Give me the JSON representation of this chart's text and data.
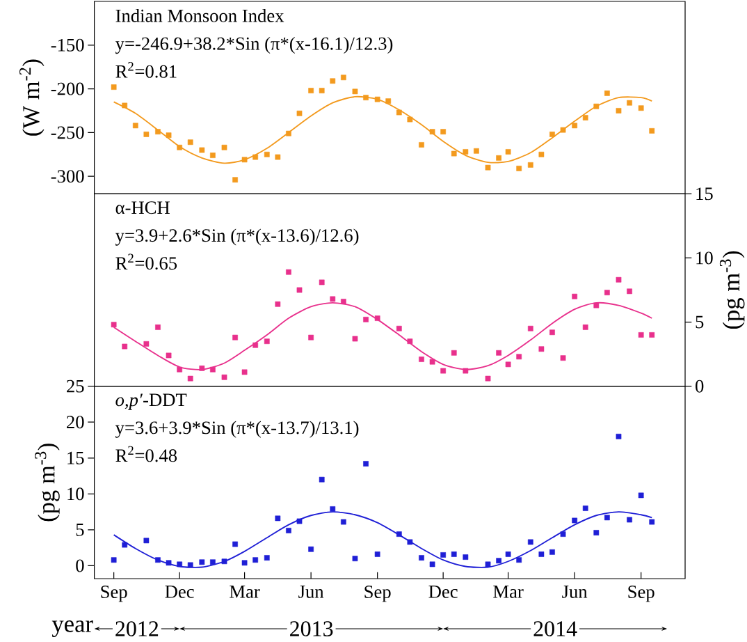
{
  "chart_data": [
    {
      "type": "scatter",
      "title": "Indian Monsoon Index",
      "annotations": [
        "y=-246.9+38.2*Sin (π*(x-16.1)/12.3)",
        "R$^{2}$=0.81"
      ],
      "ylabel": "(W  m$^{-2}$)",
      "marker": "square",
      "tick_labels": "y",
      "x": [
        "2012-09-01",
        "2012-09-16",
        "2012-10-01",
        "2012-10-16",
        "2012-11-01",
        "2012-11-16",
        "2012-12-01",
        "2012-12-16",
        "2013-01-01",
        "2013-01-16",
        "2013-02-01",
        "2013-02-16",
        "2013-03-01",
        "2013-03-16",
        "2013-04-01",
        "2013-04-16",
        "2013-05-01",
        "2013-05-16",
        "2013-06-01",
        "2013-06-16",
        "2013-07-01",
        "2013-07-16",
        "2013-08-01",
        "2013-08-16",
        "2013-09-01",
        "2013-09-16",
        "2013-10-01",
        "2013-10-16",
        "2013-11-01",
        "2013-11-16",
        "2013-12-01",
        "2013-12-16",
        "2014-01-01",
        "2014-01-16",
        "2014-02-01",
        "2014-02-16",
        "2014-03-01",
        "2014-03-16",
        "2014-04-01",
        "2014-04-16",
        "2014-05-01",
        "2014-05-16",
        "2014-06-01",
        "2014-06-16",
        "2014-07-01",
        "2014-07-16",
        "2014-08-01",
        "2014-08-16",
        "2014-09-01",
        "2014-09-16"
      ],
      "xlim": [
        "2012-08-05",
        "2014-11-01"
      ],
      "ylim": [
        -320,
        -100
      ],
      "yticks": [
        -300,
        -250,
        -200,
        -150
      ],
      "series": [
        {
          "color": "#f39a1e",
          "values": [
            -198,
            -219,
            -242,
            -252,
            -249,
            -253,
            -267,
            -261,
            -270,
            -276,
            -267,
            -304,
            -281,
            -278,
            -275,
            -278,
            -251,
            -228,
            -202,
            -202,
            -191,
            -187,
            -203,
            -210,
            -212,
            -214,
            -227,
            -235,
            -264,
            -249,
            -249,
            -274,
            -272,
            -271,
            -290,
            -279,
            -272,
            -291,
            -287,
            -275,
            -252,
            -247,
            -242,
            -233,
            -220,
            -205,
            -225,
            -216,
            -222,
            -248
          ]
        },
        {
          "type": "line",
          "marker": "none",
          "color": "#f39a1e",
          "x": [
            "2012-09-01",
            "2012-10-01",
            "2012-11-01",
            "2012-12-01",
            "2013-01-01",
            "2013-02-01",
            "2013-03-01",
            "2013-04-01",
            "2013-05-01",
            "2013-06-01",
            "2013-07-01",
            "2013-08-01",
            "2013-09-01",
            "2013-10-01",
            "2013-11-01",
            "2013-12-01",
            "2014-01-01",
            "2014-02-01",
            "2014-03-01",
            "2014-04-01",
            "2014-05-01",
            "2014-06-01",
            "2014-07-01",
            "2014-08-01",
            "2014-09-01",
            "2014-09-16"
          ],
          "values": [
            -215,
            -228,
            -247,
            -266,
            -279,
            -285,
            -281,
            -268,
            -250,
            -231,
            -216,
            -209,
            -212,
            -224,
            -241,
            -260,
            -276,
            -284,
            -283,
            -273,
            -256,
            -237,
            -220,
            -210,
            -210,
            -214
          ]
        }
      ]
    },
    {
      "type": "scatter",
      "title": "α-HCH",
      "annotations": [
        "y=3.9+2.6*Sin (π*(x-13.6)/12.6)",
        "R$^{2}$=0.65"
      ],
      "ylabel": "(pg m$^{-3}$)",
      "marker": "square",
      "tick_labels": "y",
      "x": [
        "2012-09-01",
        "2012-09-16",
        "2012-10-01",
        "2012-10-16",
        "2012-11-01",
        "2012-11-16",
        "2012-12-01",
        "2012-12-16",
        "2013-01-01",
        "2013-01-16",
        "2013-02-01",
        "2013-02-16",
        "2013-03-01",
        "2013-03-16",
        "2013-04-01",
        "2013-04-16",
        "2013-05-01",
        "2013-05-16",
        "2013-06-01",
        "2013-06-16",
        "2013-07-01",
        "2013-07-16",
        "2013-08-01",
        "2013-08-16",
        "2013-09-01",
        "2013-09-16",
        "2013-10-01",
        "2013-10-16",
        "2013-11-01",
        "2013-11-16",
        "2013-12-01",
        "2013-12-16",
        "2014-01-01",
        "2014-01-16",
        "2014-02-01",
        "2014-02-16",
        "2014-03-01",
        "2014-03-16",
        "2014-04-01",
        "2014-04-16",
        "2014-05-01",
        "2014-05-16",
        "2014-06-01",
        "2014-06-16",
        "2014-07-01",
        "2014-07-16",
        "2014-08-01",
        "2014-08-16",
        "2014-09-01",
        "2014-09-16"
      ],
      "xlim": [
        "2012-08-05",
        "2014-11-01"
      ],
      "ylim": [
        0,
        15
      ],
      "yticks": [
        0,
        5,
        10,
        15
      ],
      "series": [
        {
          "color": "#e8308c",
          "values": [
            4.8,
            3.1,
            null,
            3.3,
            4.6,
            2.4,
            1.3,
            0.6,
            1.4,
            1.3,
            0.7,
            3.8,
            1.1,
            3.2,
            3.5,
            6.4,
            8.9,
            7.5,
            3.8,
            8.1,
            6.8,
            6.6,
            3.7,
            5.2,
            5.3,
            null,
            4.5,
            3.5,
            2.1,
            1.9,
            1.2,
            2.6,
            1.2,
            null,
            0.6,
            2.6,
            1.7,
            2.3,
            4.5,
            2.9,
            4.2,
            2.2,
            7.0,
            4.6,
            6.3,
            7.3,
            8.3,
            7.4,
            4.0,
            4.0
          ]
        },
        {
          "type": "line",
          "marker": "none",
          "color": "#e8308c",
          "x": [
            "2012-09-01",
            "2012-10-01",
            "2012-11-01",
            "2012-12-01",
            "2013-01-01",
            "2013-02-01",
            "2013-03-01",
            "2013-04-01",
            "2013-05-01",
            "2013-06-01",
            "2013-07-01",
            "2013-08-01",
            "2013-09-01",
            "2013-10-01",
            "2013-11-01",
            "2013-12-01",
            "2014-01-01",
            "2014-02-01",
            "2014-03-01",
            "2014-04-01",
            "2014-05-01",
            "2014-06-01",
            "2014-07-01",
            "2014-08-01",
            "2014-09-01",
            "2014-09-16"
          ],
          "values": [
            4.6,
            3.5,
            2.4,
            1.5,
            1.3,
            1.8,
            2.8,
            4.0,
            5.3,
            6.2,
            6.5,
            6.2,
            5.2,
            4.0,
            2.7,
            1.7,
            1.3,
            1.6,
            2.4,
            3.6,
            4.9,
            6.0,
            6.5,
            6.3,
            5.7,
            5.3
          ]
        }
      ]
    },
    {
      "type": "scatter",
      "title": "*o,p′*-DDT",
      "annotations": [
        "y=3.6+3.9*Sin (π*(x-13.7)/13.1)",
        "R$^{2}$=0.48",
        "2012",
        "2013",
        "2014"
      ],
      "xlabel": "year",
      "ylabel": "(pg m$^{-3}$)",
      "marker": "square",
      "x": [
        "2012-09-01",
        "2012-09-16",
        "2012-10-01",
        "2012-10-16",
        "2012-11-01",
        "2012-11-16",
        "2012-12-01",
        "2012-12-16",
        "2013-01-01",
        "2013-01-16",
        "2013-02-01",
        "2013-02-16",
        "2013-03-01",
        "2013-03-16",
        "2013-04-01",
        "2013-04-16",
        "2013-05-01",
        "2013-05-16",
        "2013-06-01",
        "2013-06-16",
        "2013-07-01",
        "2013-07-16",
        "2013-08-01",
        "2013-08-16",
        "2013-09-01",
        "2013-09-16",
        "2013-10-01",
        "2013-10-16",
        "2013-11-01",
        "2013-11-16",
        "2013-12-01",
        "2013-12-16",
        "2014-01-01",
        "2014-01-16",
        "2014-02-01",
        "2014-02-16",
        "2014-03-01",
        "2014-03-16",
        "2014-04-01",
        "2014-04-16",
        "2014-05-01",
        "2014-05-16",
        "2014-06-01",
        "2014-06-16",
        "2014-07-01",
        "2014-07-16",
        "2014-08-01",
        "2014-08-16",
        "2014-09-01",
        "2014-09-16"
      ],
      "xlim": [
        "2012-08-05",
        "2014-11-01"
      ],
      "xticks": [
        {
          "value": "2012-09-01",
          "label": "Sep"
        },
        {
          "value": "2012-12-01",
          "label": "Dec"
        },
        {
          "value": "2013-03-01",
          "label": "Mar"
        },
        {
          "value": "2013-06-01",
          "label": "Jun"
        },
        {
          "value": "2013-09-01",
          "label": "Sep"
        },
        {
          "value": "2013-12-01",
          "label": "Dec"
        },
        {
          "value": "2014-03-01",
          "label": "Mar"
        },
        {
          "value": "2014-06-01",
          "label": "Jun"
        },
        {
          "value": "2014-09-01",
          "label": "Sep"
        }
      ],
      "ylim": [
        -1.8,
        25
      ],
      "yticks": [
        0,
        5,
        10,
        15,
        20,
        25
      ],
      "series": [
        {
          "color": "#1f1fd6",
          "values": [
            0.8,
            2.9,
            null,
            3.5,
            0.8,
            0.4,
            0.2,
            0.1,
            0.5,
            0.5,
            0.6,
            3.0,
            0.4,
            0.8,
            1.1,
            6.6,
            4.9,
            6.2,
            2.3,
            12.0,
            7.9,
            6.1,
            1.0,
            14.2,
            1.6,
            null,
            4.4,
            3.3,
            1.1,
            0.2,
            1.5,
            1.6,
            1.2,
            null,
            0.2,
            0.7,
            1.6,
            0.8,
            3.3,
            1.6,
            1.9,
            4.4,
            6.3,
            8.0,
            4.6,
            6.7,
            18.0,
            6.4,
            9.8,
            6.1
          ]
        },
        {
          "type": "line",
          "marker": "none",
          "color": "#1f1fd6",
          "x": [
            "2012-09-01",
            "2012-10-01",
            "2012-11-01",
            "2012-12-01",
            "2013-01-01",
            "2013-02-01",
            "2013-03-01",
            "2013-04-01",
            "2013-05-01",
            "2013-06-01",
            "2013-07-01",
            "2013-08-01",
            "2013-09-01",
            "2013-10-01",
            "2013-11-01",
            "2013-12-01",
            "2014-01-01",
            "2014-02-01",
            "2014-03-01",
            "2014-04-01",
            "2014-05-01",
            "2014-06-01",
            "2014-07-01",
            "2014-08-01",
            "2014-09-01",
            "2014-09-16"
          ],
          "values": [
            4.3,
            2.4,
            0.8,
            -0.1,
            -0.2,
            0.6,
            2.0,
            3.9,
            5.7,
            7.0,
            7.5,
            7.1,
            6.0,
            4.3,
            2.4,
            0.8,
            -0.1,
            -0.2,
            0.6,
            2.1,
            3.9,
            5.7,
            7.0,
            7.5,
            7.1,
            6.7
          ]
        }
      ]
    }
  ]
}
